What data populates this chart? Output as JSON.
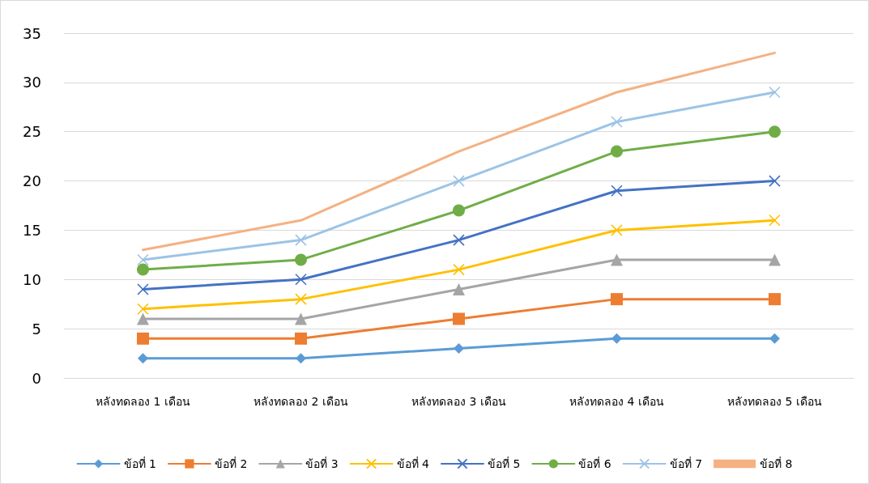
{
  "chart_data": {
    "type": "line",
    "categories": [
      "หลังทดลอง 1 เดือน",
      "หลังทดลอง 2 เดือน",
      "หลังทดลอง 3 เดือน",
      "หลังทดลอง 4 เดือน",
      "หลังทดลอง 5 เดือน"
    ],
    "ylim": [
      0,
      35
    ],
    "yticks": [
      0,
      5,
      10,
      15,
      20,
      25,
      30,
      35
    ],
    "grid": "y",
    "legend": "bottom",
    "series": [
      {
        "name": "ข้อที่ 1",
        "color": "#5b9bd5",
        "marker": "diamond",
        "values": [
          2,
          2,
          3,
          4,
          4
        ]
      },
      {
        "name": "ข้อที่ 2",
        "color": "#ed7d31",
        "marker": "square",
        "values": [
          4,
          4,
          6,
          8,
          8
        ]
      },
      {
        "name": "ข้อที่ 3",
        "color": "#a5a5a5",
        "marker": "triangle",
        "values": [
          6,
          6,
          9,
          12,
          12
        ]
      },
      {
        "name": "ข้อที่ 4",
        "color": "#ffc000",
        "marker": "cross",
        "values": [
          7,
          8,
          11,
          15,
          16
        ]
      },
      {
        "name": "ข้อที่ 5",
        "color": "#4472c4",
        "marker": "cross",
        "values": [
          9,
          10,
          14,
          19,
          20
        ]
      },
      {
        "name": "ข้อที่ 6",
        "color": "#70ad47",
        "marker": "circle",
        "values": [
          11,
          12,
          17,
          23,
          25
        ]
      },
      {
        "name": "ข้อที่ 7",
        "color": "#9dc3e6",
        "marker": "cross",
        "values": [
          12,
          14,
          20,
          26,
          29
        ]
      },
      {
        "name": "ข้อที่ 8",
        "color": "#f4b183",
        "marker": "none",
        "values": [
          13,
          16,
          23,
          29,
          33
        ]
      }
    ]
  }
}
